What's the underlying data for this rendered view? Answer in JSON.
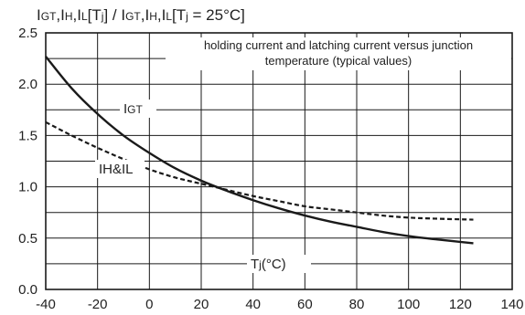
{
  "chart_data": {
    "type": "line",
    "title": "IGT,IH,IL[Tj] / IGT,IH,IL[Tj = 25°C]",
    "annotation": {
      "line1": "holding current and latching current versus junction",
      "line2": "temperature (typical values)"
    },
    "xlabel": "Tj(°C)",
    "ylabel": "",
    "xlim": [
      -40,
      140
    ],
    "ylim": [
      0.0,
      2.5
    ],
    "xticks": [
      -40,
      -20,
      0,
      20,
      40,
      60,
      80,
      100,
      120,
      140
    ],
    "yticks": [
      "0.0",
      "0.5",
      "1.0",
      "1.5",
      "2.0",
      "2.5"
    ],
    "grid": true,
    "series": [
      {
        "name": "IGT",
        "style": "solid",
        "x": [
          -40,
          -30,
          -20,
          -10,
          0,
          10,
          20,
          30,
          40,
          50,
          60,
          70,
          80,
          90,
          100,
          110,
          125
        ],
        "y": [
          2.27,
          1.96,
          1.71,
          1.5,
          1.33,
          1.18,
          1.06,
          0.96,
          0.87,
          0.79,
          0.72,
          0.66,
          0.61,
          0.56,
          0.52,
          0.49,
          0.45
        ]
      },
      {
        "name": "IH&IL",
        "style": "dashed",
        "x": [
          -40,
          -30,
          -20,
          -10,
          0,
          10,
          20,
          30,
          40,
          50,
          60,
          70,
          80,
          90,
          100,
          110,
          125
        ],
        "y": [
          1.63,
          1.5,
          1.38,
          1.27,
          1.17,
          1.09,
          1.03,
          0.97,
          0.91,
          0.86,
          0.81,
          0.78,
          0.75,
          0.72,
          0.7,
          0.69,
          0.68
        ]
      }
    ],
    "colors": {
      "line": "#1a1a1a",
      "grid": "#1a1a1a",
      "background": "#ffffff"
    }
  }
}
